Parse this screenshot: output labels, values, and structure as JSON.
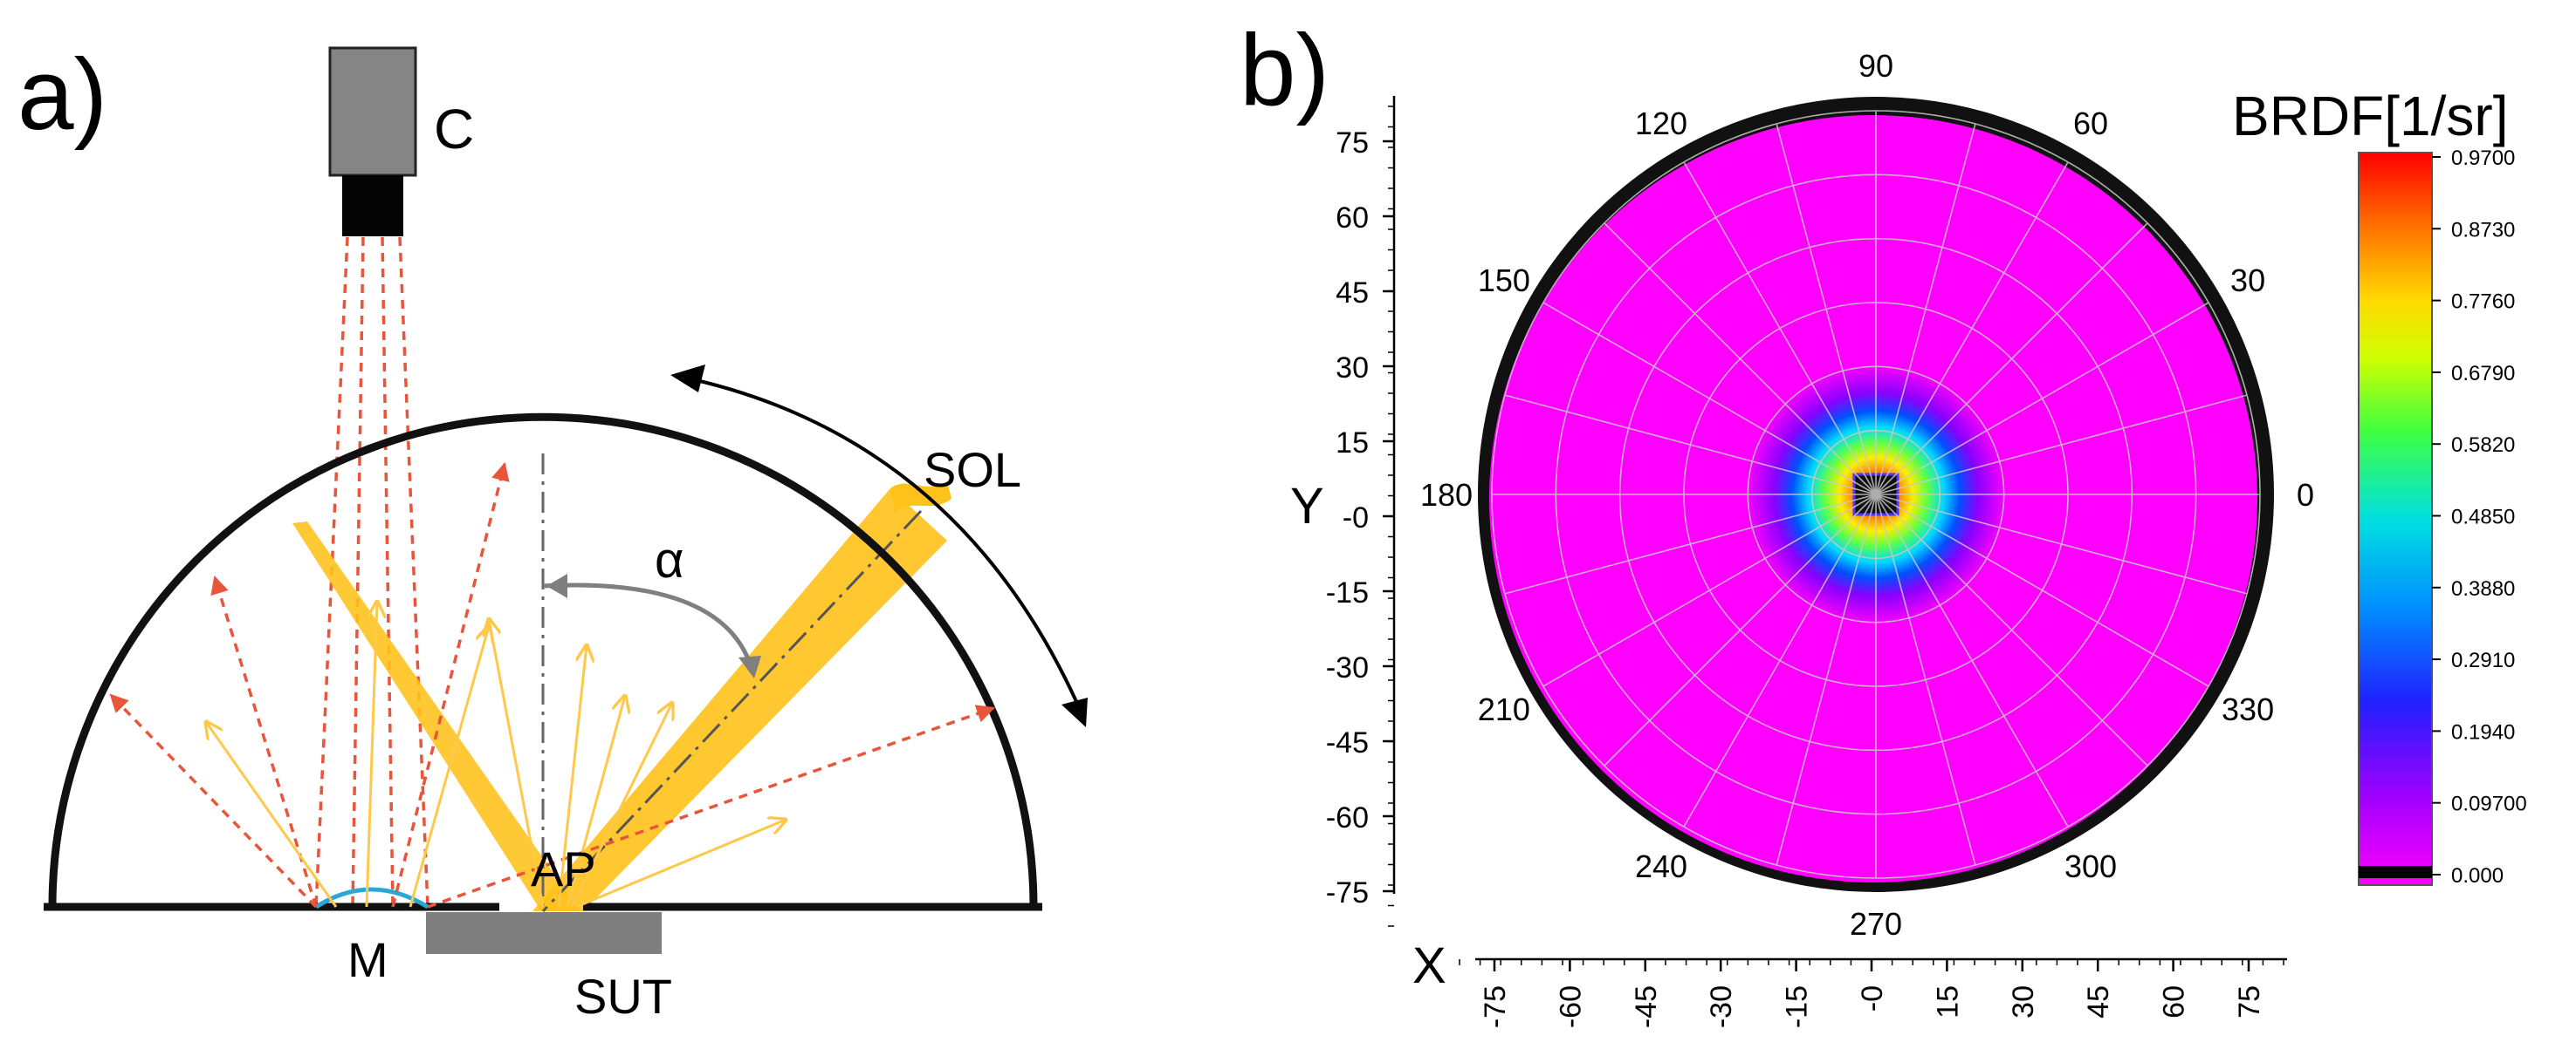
{
  "panel_a": {
    "label": "a)",
    "camera_label": "C",
    "rotation_label": "SOL",
    "angle_label": "α",
    "aperture_label": "AP",
    "mirror_label": "M",
    "sample_label": "SUT"
  },
  "panel_b": {
    "label": "b)",
    "y_axis_label": "Y",
    "x_axis_label": "X",
    "axis_ticks": [
      "75",
      "60",
      "45",
      "30",
      "15",
      "-0",
      "-15",
      "-30",
      "-45",
      "-60",
      "-75"
    ],
    "polar_angles": [
      "0",
      "30",
      "60",
      "90",
      "120",
      "150",
      "180",
      "210",
      "240",
      "270",
      "300",
      "330"
    ],
    "colorbar_title": "BRDF[1/sr]",
    "colorbar_ticks": [
      "0.9700",
      "0.8730",
      "0.7760",
      "0.6790",
      "0.5820",
      "0.4850",
      "0.3880",
      "0.2910",
      "0.1940",
      "0.09700",
      "0.000"
    ]
  },
  "colors": {
    "light_beam": "#ffc21a",
    "dashed_ray": "#e8553a",
    "solid_ray": "#ffc84a",
    "mirror": "#29a8d8",
    "sample": "#7f7f7f",
    "camera_body": "#858585",
    "disc_background": "#ff00ff"
  }
}
